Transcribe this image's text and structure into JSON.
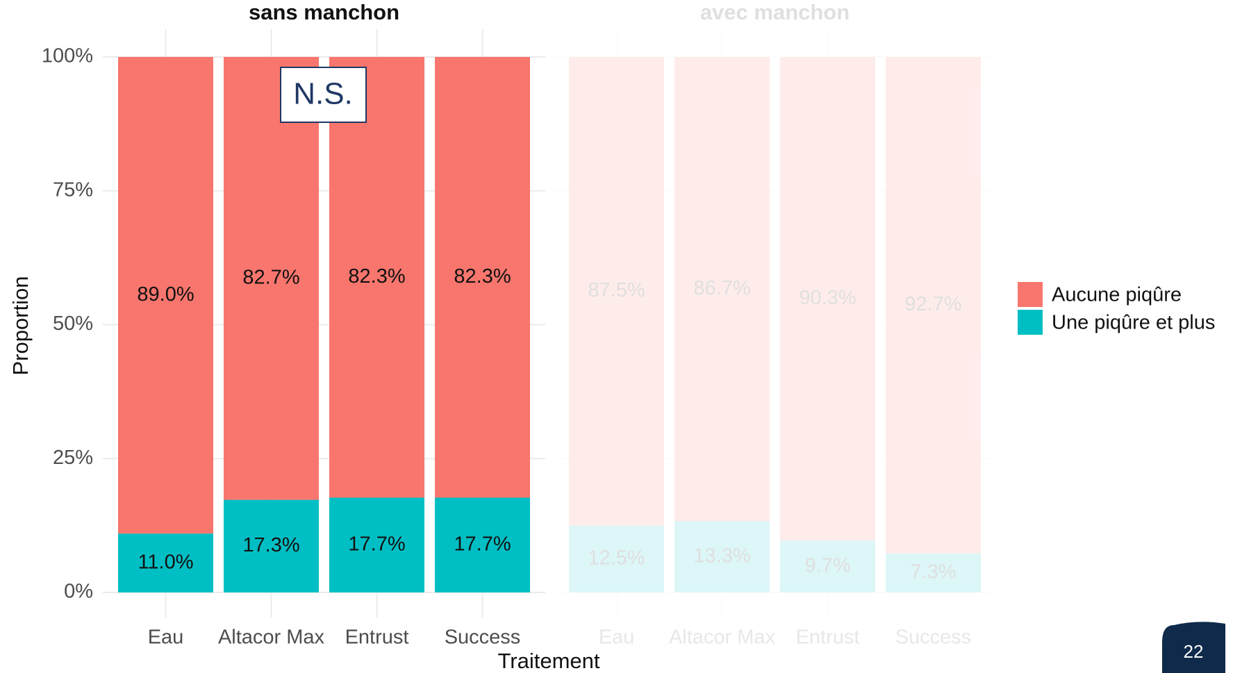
{
  "chart_data": [
    {
      "type": "bar",
      "title": "sans manchon",
      "ylabel": "Proportion",
      "xlabel": "Traitement",
      "categories": [
        "Eau",
        "Altacor Max",
        "Entrust",
        "Success"
      ],
      "series": [
        {
          "name": "Aucune piqûre",
          "color": "#F8766D",
          "values": [
            89.0,
            82.7,
            82.3,
            82.3
          ],
          "value_labels": [
            "89.0%",
            "82.7%",
            "82.3%",
            "82.3%"
          ]
        },
        {
          "name": "Une piqûre et plus",
          "color": "#00BFC4",
          "values": [
            11.0,
            17.3,
            17.7,
            17.7
          ],
          "value_labels": [
            "11.0%",
            "17.3%",
            "17.7%",
            "17.7%"
          ]
        }
      ],
      "ylim": [
        0,
        100
      ],
      "yticks": [
        {
          "value": 0,
          "label": "0%"
        },
        {
          "value": 25,
          "label": "25%"
        },
        {
          "value": 50,
          "label": "50%"
        },
        {
          "value": 75,
          "label": "75%"
        },
        {
          "value": 100,
          "label": "100%"
        }
      ],
      "grid": true,
      "legend": "right",
      "opacity": 1,
      "annotations": [
        "N.S."
      ]
    },
    {
      "type": "bar",
      "title": "avec manchon",
      "categories": [
        "Eau",
        "Altacor Max",
        "Entrust",
        "Success"
      ],
      "series": [
        {
          "color": "#F8766D",
          "values": [
            87.5,
            86.7,
            90.3,
            92.7
          ],
          "value_labels": [
            "87.5%",
            "86.7%",
            "90.3%",
            "92.7%"
          ]
        },
        {
          "color": "#00BFC4",
          "values": [
            12.5,
            13.3,
            9.7,
            7.3
          ],
          "value_labels": [
            "12.5%",
            "13.3%",
            "9.7%",
            "7.3%"
          ]
        }
      ],
      "ylim": [
        0,
        100
      ],
      "yticks": [
        0,
        25,
        50,
        75,
        100
      ],
      "grid": true,
      "opacity": 0.13
    }
  ],
  "page_number": "22"
}
